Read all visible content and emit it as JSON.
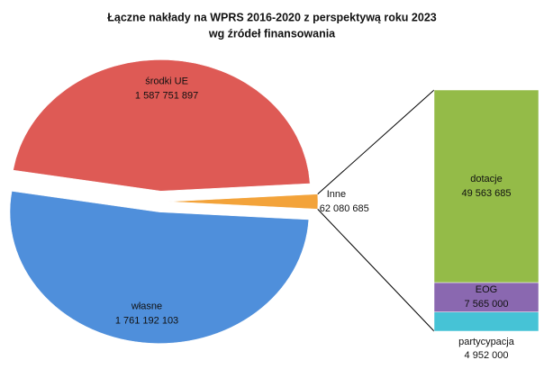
{
  "chart_data": {
    "type": "pie-of-bar",
    "title": "Łączne nakłady na WPRS 2016-2020 z perspektywą roku 2023",
    "subtitle": "wg źródeł finansowania",
    "categories": [
      "Inne",
      "własne",
      "środki UE"
    ],
    "values": [
      62080685,
      1761192103,
      1587751897
    ],
    "value_labels": [
      "62 080 685",
      "1 761 192 103",
      "1 587 751 897"
    ],
    "colors": [
      "#f3a33a",
      "#4f8fdb",
      "#de5a55"
    ],
    "bar": {
      "categories": [
        "partycypacja",
        "EOG",
        "dotacje"
      ],
      "values": [
        4952000,
        7565000,
        49563685
      ],
      "value_labels": [
        "4 952 000",
        "7 565 000",
        "49 563 685"
      ],
      "colors": [
        "#46c3d6",
        "#8a68b0",
        "#94bb48"
      ]
    }
  }
}
